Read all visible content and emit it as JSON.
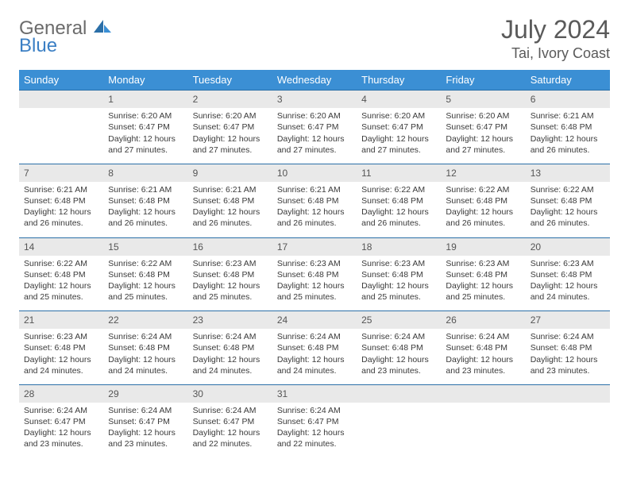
{
  "logo": {
    "word1": "General",
    "word2": "Blue"
  },
  "title": "July 2024",
  "location": "Tai, Ivory Coast",
  "colors": {
    "header_bg": "#3b8fd4",
    "header_text": "#ffffff",
    "daynum_bg": "#e9e9e9",
    "rule": "#2b6fa8",
    "logo_gray": "#6b6b6b",
    "logo_blue": "#3b7fc4"
  },
  "weekdays": [
    "Sunday",
    "Monday",
    "Tuesday",
    "Wednesday",
    "Thursday",
    "Friday",
    "Saturday"
  ],
  "weeks": [
    [
      null,
      {
        "n": "1",
        "sr": "6:20 AM",
        "ss": "6:47 PM",
        "dl": "12 hours and 27 minutes."
      },
      {
        "n": "2",
        "sr": "6:20 AM",
        "ss": "6:47 PM",
        "dl": "12 hours and 27 minutes."
      },
      {
        "n": "3",
        "sr": "6:20 AM",
        "ss": "6:47 PM",
        "dl": "12 hours and 27 minutes."
      },
      {
        "n": "4",
        "sr": "6:20 AM",
        "ss": "6:47 PM",
        "dl": "12 hours and 27 minutes."
      },
      {
        "n": "5",
        "sr": "6:20 AM",
        "ss": "6:47 PM",
        "dl": "12 hours and 27 minutes."
      },
      {
        "n": "6",
        "sr": "6:21 AM",
        "ss": "6:48 PM",
        "dl": "12 hours and 26 minutes."
      }
    ],
    [
      {
        "n": "7",
        "sr": "6:21 AM",
        "ss": "6:48 PM",
        "dl": "12 hours and 26 minutes."
      },
      {
        "n": "8",
        "sr": "6:21 AM",
        "ss": "6:48 PM",
        "dl": "12 hours and 26 minutes."
      },
      {
        "n": "9",
        "sr": "6:21 AM",
        "ss": "6:48 PM",
        "dl": "12 hours and 26 minutes."
      },
      {
        "n": "10",
        "sr": "6:21 AM",
        "ss": "6:48 PM",
        "dl": "12 hours and 26 minutes."
      },
      {
        "n": "11",
        "sr": "6:22 AM",
        "ss": "6:48 PM",
        "dl": "12 hours and 26 minutes."
      },
      {
        "n": "12",
        "sr": "6:22 AM",
        "ss": "6:48 PM",
        "dl": "12 hours and 26 minutes."
      },
      {
        "n": "13",
        "sr": "6:22 AM",
        "ss": "6:48 PM",
        "dl": "12 hours and 26 minutes."
      }
    ],
    [
      {
        "n": "14",
        "sr": "6:22 AM",
        "ss": "6:48 PM",
        "dl": "12 hours and 25 minutes."
      },
      {
        "n": "15",
        "sr": "6:22 AM",
        "ss": "6:48 PM",
        "dl": "12 hours and 25 minutes."
      },
      {
        "n": "16",
        "sr": "6:23 AM",
        "ss": "6:48 PM",
        "dl": "12 hours and 25 minutes."
      },
      {
        "n": "17",
        "sr": "6:23 AM",
        "ss": "6:48 PM",
        "dl": "12 hours and 25 minutes."
      },
      {
        "n": "18",
        "sr": "6:23 AM",
        "ss": "6:48 PM",
        "dl": "12 hours and 25 minutes."
      },
      {
        "n": "19",
        "sr": "6:23 AM",
        "ss": "6:48 PM",
        "dl": "12 hours and 25 minutes."
      },
      {
        "n": "20",
        "sr": "6:23 AM",
        "ss": "6:48 PM",
        "dl": "12 hours and 24 minutes."
      }
    ],
    [
      {
        "n": "21",
        "sr": "6:23 AM",
        "ss": "6:48 PM",
        "dl": "12 hours and 24 minutes."
      },
      {
        "n": "22",
        "sr": "6:24 AM",
        "ss": "6:48 PM",
        "dl": "12 hours and 24 minutes."
      },
      {
        "n": "23",
        "sr": "6:24 AM",
        "ss": "6:48 PM",
        "dl": "12 hours and 24 minutes."
      },
      {
        "n": "24",
        "sr": "6:24 AM",
        "ss": "6:48 PM",
        "dl": "12 hours and 24 minutes."
      },
      {
        "n": "25",
        "sr": "6:24 AM",
        "ss": "6:48 PM",
        "dl": "12 hours and 23 minutes."
      },
      {
        "n": "26",
        "sr": "6:24 AM",
        "ss": "6:48 PM",
        "dl": "12 hours and 23 minutes."
      },
      {
        "n": "27",
        "sr": "6:24 AM",
        "ss": "6:48 PM",
        "dl": "12 hours and 23 minutes."
      }
    ],
    [
      {
        "n": "28",
        "sr": "6:24 AM",
        "ss": "6:47 PM",
        "dl": "12 hours and 23 minutes."
      },
      {
        "n": "29",
        "sr": "6:24 AM",
        "ss": "6:47 PM",
        "dl": "12 hours and 23 minutes."
      },
      {
        "n": "30",
        "sr": "6:24 AM",
        "ss": "6:47 PM",
        "dl": "12 hours and 22 minutes."
      },
      {
        "n": "31",
        "sr": "6:24 AM",
        "ss": "6:47 PM",
        "dl": "12 hours and 22 minutes."
      },
      null,
      null,
      null
    ]
  ],
  "labels": {
    "sunrise": "Sunrise: ",
    "sunset": "Sunset: ",
    "daylight": "Daylight: "
  }
}
